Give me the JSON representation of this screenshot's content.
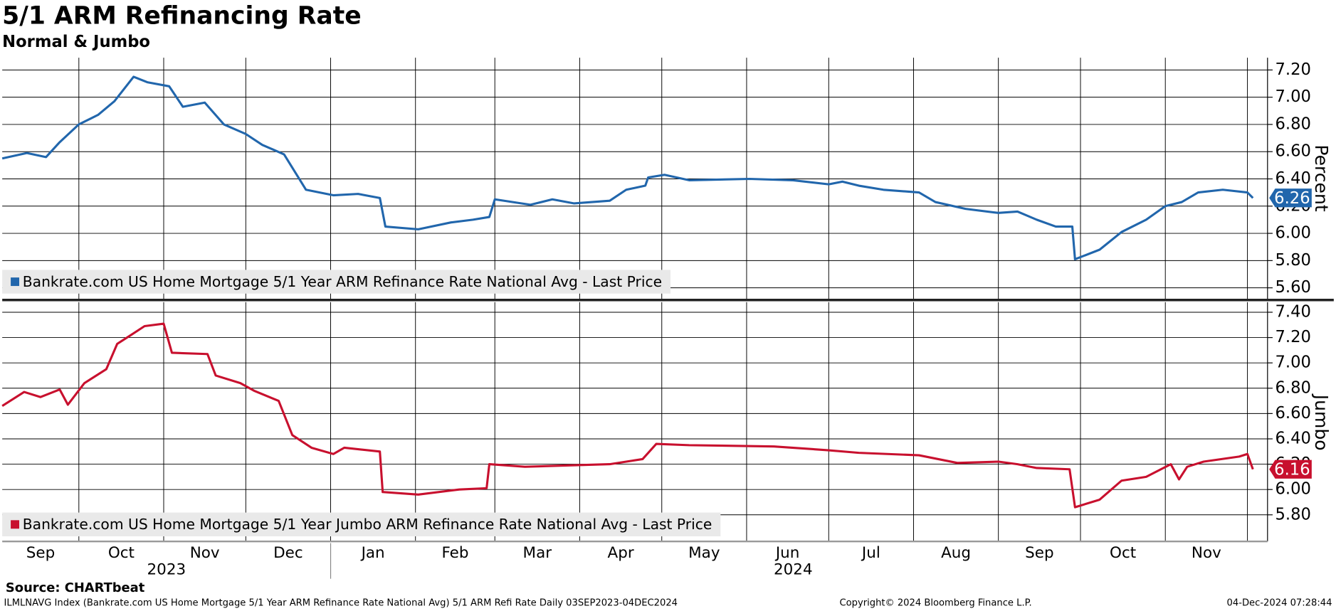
{
  "title": "5/1 ARM Refinancing Rate",
  "subtitle": "Normal & Jumbo",
  "source": "Source: CHARTbeat",
  "footer": {
    "description": "ILMLNAVG Index (Bankrate.com US Home Mortgage 5/1 Year ARM Refinance Rate National Avg) 5/1 ARM Refi Rate  Daily 03SEP2023-04DEC2024",
    "copyright": "Copyright© 2024 Bloomberg Finance L.P.",
    "timestamp": "04-Dec-2024 07:28:44"
  },
  "chart_data": [
    {
      "type": "line",
      "ylabel": "Percent",
      "grid": true,
      "xlim": [
        "2023-09-03",
        "2024-12-04"
      ],
      "ylim": [
        5.52,
        7.29
      ],
      "yticks": [
        {
          "value": 5.6,
          "label": "5.60"
        },
        {
          "value": 5.8,
          "label": "5.80"
        },
        {
          "value": 6.0,
          "label": "6.00"
        },
        {
          "value": 6.2,
          "label": "6.20"
        },
        {
          "value": 6.4,
          "label": "6.40"
        },
        {
          "value": 6.6,
          "label": "6.60"
        },
        {
          "value": 6.8,
          "label": "6.80"
        },
        {
          "value": 7.0,
          "label": "7.00"
        },
        {
          "value": 7.2,
          "label": "7.20"
        }
      ],
      "series": [
        {
          "name": "Bankrate.com US Home Mortgage 5/1 Year ARM Refinance Rate National Avg - Last Price",
          "color": "#2166ac",
          "x": [
            "2023-09-03",
            "2023-09-12",
            "2023-09-19",
            "2023-09-24",
            "2023-10-01",
            "2023-10-08",
            "2023-10-14",
            "2023-10-21",
            "2023-10-26",
            "2023-11-03",
            "2023-11-08",
            "2023-11-16",
            "2023-11-23",
            "2023-12-01",
            "2023-12-07",
            "2023-12-15",
            "2023-12-23",
            "2024-01-02",
            "2024-01-11",
            "2024-01-19",
            "2024-01-21",
            "2024-02-02",
            "2024-02-14",
            "2024-02-22",
            "2024-02-28",
            "2024-03-01",
            "2024-03-14",
            "2024-03-22",
            "2024-03-30",
            "2024-04-12",
            "2024-04-18",
            "2024-04-25",
            "2024-04-26",
            "2024-05-02",
            "2024-05-11",
            "2024-06-02",
            "2024-06-18",
            "2024-07-01",
            "2024-07-06",
            "2024-07-12",
            "2024-07-21",
            "2024-08-03",
            "2024-08-09",
            "2024-08-20",
            "2024-09-01",
            "2024-09-08",
            "2024-09-15",
            "2024-09-22",
            "2024-09-28",
            "2024-09-29",
            "2024-10-08",
            "2024-10-16",
            "2024-10-25",
            "2024-11-01",
            "2024-11-07",
            "2024-11-13",
            "2024-11-22",
            "2024-12-01",
            "2024-12-03"
          ],
          "values": [
            6.55,
            6.59,
            6.56,
            6.67,
            6.8,
            6.87,
            6.97,
            7.15,
            7.11,
            7.08,
            6.93,
            6.96,
            6.8,
            6.73,
            6.65,
            6.58,
            6.32,
            6.28,
            6.29,
            6.26,
            6.05,
            6.03,
            6.08,
            6.1,
            6.12,
            6.25,
            6.21,
            6.25,
            6.22,
            6.24,
            6.32,
            6.35,
            6.41,
            6.43,
            6.39,
            6.4,
            6.39,
            6.36,
            6.38,
            6.35,
            6.32,
            6.3,
            6.23,
            6.18,
            6.15,
            6.16,
            6.1,
            6.05,
            6.05,
            5.81,
            5.88,
            6.01,
            6.1,
            6.2,
            6.23,
            6.3,
            6.32,
            6.3,
            6.26
          ]
        }
      ]
    },
    {
      "type": "line",
      "ylabel": "Jumbo",
      "grid": true,
      "xlim": [
        "2023-09-03",
        "2024-12-04"
      ],
      "ylim": [
        5.59,
        7.48
      ],
      "yticks": [
        {
          "value": 5.8,
          "label": "5.80"
        },
        {
          "value": 6.0,
          "label": "6.00"
        },
        {
          "value": 6.2,
          "label": "6.20"
        },
        {
          "value": 6.4,
          "label": "6.40"
        },
        {
          "value": 6.6,
          "label": "6.60"
        },
        {
          "value": 6.8,
          "label": "6.80"
        },
        {
          "value": 7.0,
          "label": "7.00"
        },
        {
          "value": 7.2,
          "label": "7.20"
        },
        {
          "value": 7.4,
          "label": "7.40"
        }
      ],
      "xticks": [
        {
          "value": "2023-09-01",
          "label": "Sep"
        },
        {
          "value": "2023-10-01",
          "label": "Oct"
        },
        {
          "value": "2023-11-01",
          "label": "Nov"
        },
        {
          "value": "2023-12-01",
          "label": "Dec"
        },
        {
          "value": "2024-01-01",
          "label": "Jan"
        },
        {
          "value": "2024-02-01",
          "label": "Feb"
        },
        {
          "value": "2024-03-01",
          "label": "Mar"
        },
        {
          "value": "2024-04-01",
          "label": "Apr"
        },
        {
          "value": "2024-05-01",
          "label": "May"
        },
        {
          "value": "2024-06-01",
          "label": "Jun"
        },
        {
          "value": "2024-07-01",
          "label": "Jul"
        },
        {
          "value": "2024-08-01",
          "label": "Aug"
        },
        {
          "value": "2024-09-01",
          "label": "Sep"
        },
        {
          "value": "2024-10-01",
          "label": "Oct"
        },
        {
          "value": "2024-11-01",
          "label": "Nov"
        },
        {
          "value": "2024-12-01",
          "label": null
        }
      ],
      "year_labels": [
        {
          "value": "2023",
          "label": "2023"
        },
        {
          "value": "2024",
          "label": "2024"
        }
      ],
      "series": [
        {
          "name": "Bankrate.com US Home Mortgage 5/1 Year Jumbo ARM Refinance Rate National Avg - Last Price",
          "color": "#c8102e",
          "x": [
            "2023-09-03",
            "2023-09-11",
            "2023-09-17",
            "2023-09-24",
            "2023-09-27",
            "2023-10-03",
            "2023-10-11",
            "2023-10-15",
            "2023-10-20",
            "2023-10-25",
            "2023-11-01",
            "2023-11-04",
            "2023-11-17",
            "2023-11-20",
            "2023-11-29",
            "2023-12-04",
            "2023-12-13",
            "2023-12-18",
            "2023-12-25",
            "2024-01-02",
            "2024-01-06",
            "2024-01-19",
            "2024-01-20",
            "2024-02-02",
            "2024-02-17",
            "2024-02-27",
            "2024-02-28",
            "2024-03-12",
            "2024-03-27",
            "2024-04-12",
            "2024-04-24",
            "2024-04-29",
            "2024-05-11",
            "2024-06-11",
            "2024-07-01",
            "2024-07-12",
            "2024-08-03",
            "2024-08-17",
            "2024-09-01",
            "2024-09-08",
            "2024-09-15",
            "2024-09-27",
            "2024-09-29",
            "2024-10-08",
            "2024-10-16",
            "2024-10-25",
            "2024-11-03",
            "2024-11-06",
            "2024-11-09",
            "2024-11-15",
            "2024-11-28",
            "2024-12-01",
            "2024-12-03"
          ],
          "values": [
            6.66,
            6.77,
            6.73,
            6.79,
            6.67,
            6.84,
            6.95,
            7.15,
            7.22,
            7.29,
            7.31,
            7.08,
            7.07,
            6.9,
            6.84,
            6.78,
            6.7,
            6.43,
            6.33,
            6.28,
            6.33,
            6.3,
            5.98,
            5.96,
            6.0,
            6.01,
            6.2,
            6.18,
            6.19,
            6.2,
            6.24,
            6.36,
            6.35,
            6.34,
            6.31,
            6.29,
            6.27,
            6.21,
            6.22,
            6.2,
            6.17,
            6.16,
            5.86,
            5.92,
            6.07,
            6.1,
            6.2,
            6.08,
            6.18,
            6.22,
            6.26,
            6.28,
            6.16
          ]
        }
      ]
    }
  ]
}
